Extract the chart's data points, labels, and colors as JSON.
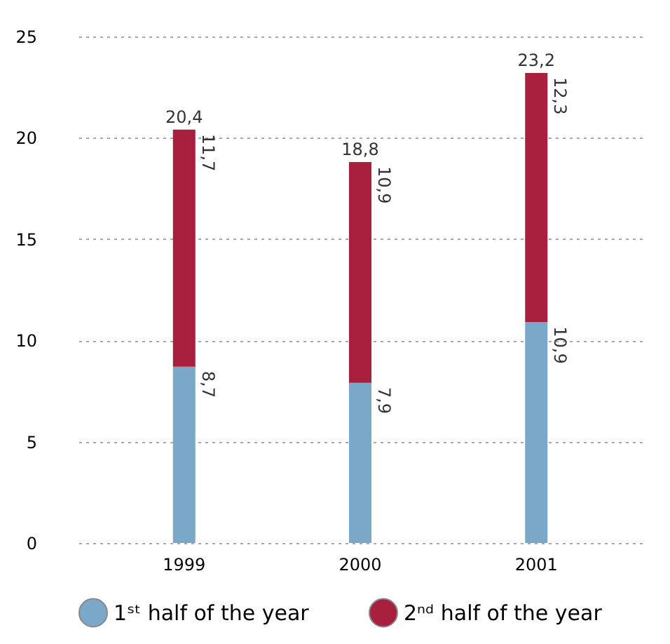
{
  "chart_data": {
    "type": "bar",
    "stacked": true,
    "categories": [
      "1999",
      "2000",
      "2001"
    ],
    "series": [
      {
        "name": "1ˢᵗ half of the year",
        "color": "#7ba7c9",
        "values": [
          8.7,
          7.9,
          10.9
        ],
        "value_labels": [
          "8,7",
          "7,9",
          "10,9"
        ]
      },
      {
        "name": "2ⁿᵈ half of the year",
        "color": "#a8203d",
        "values": [
          11.7,
          10.9,
          12.3
        ],
        "value_labels": [
          "11,7",
          "10,9",
          "12,3"
        ]
      }
    ],
    "totals": [
      "20,4",
      "18,8",
      "23,2"
    ],
    "ylim": [
      0,
      25
    ],
    "yticks": [
      0,
      5,
      10,
      15,
      20,
      25
    ],
    "grid": "y",
    "legend": "bottom"
  }
}
